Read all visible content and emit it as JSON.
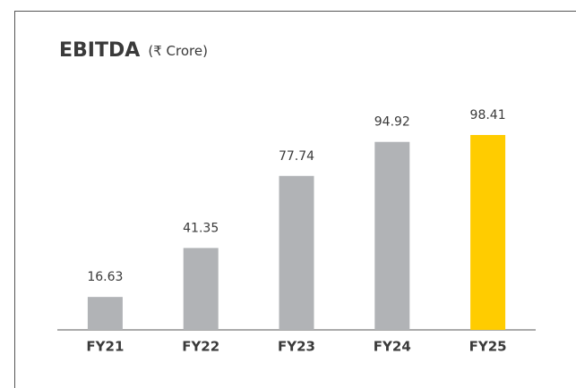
{
  "chart_data": {
    "type": "bar",
    "title": "EBITDA",
    "subtitle": "(₹ Crore)",
    "categories": [
      "FY21",
      "FY22",
      "FY23",
      "FY24",
      "FY25"
    ],
    "values": [
      16.63,
      41.35,
      77.74,
      94.92,
      98.41
    ],
    "colors": [
      "#b1b3b6",
      "#b1b3b6",
      "#b1b3b6",
      "#b1b3b6",
      "#ffcc00"
    ]
  }
}
